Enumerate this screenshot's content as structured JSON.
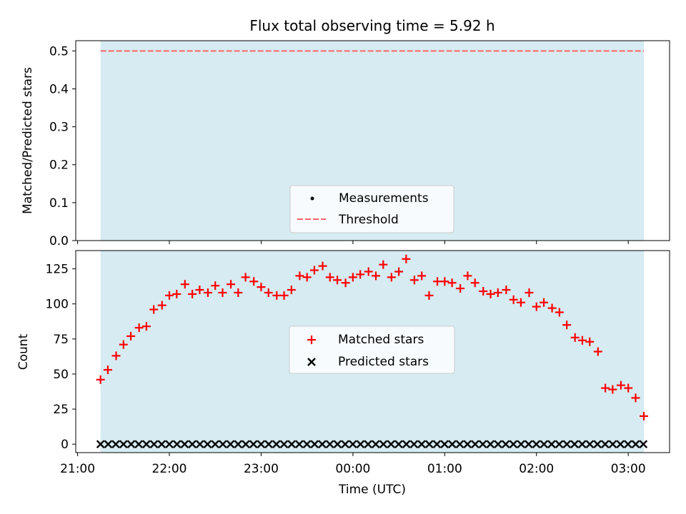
{
  "title": "Flux total observing time = 5.92 h",
  "xlabel": "Time (UTC)",
  "colors": {
    "band": "#add8e6",
    "threshold": "#ff6666",
    "matched": "#ff0000",
    "predicted": "#000000"
  },
  "chart_data": [
    {
      "type": "line",
      "panel": "top",
      "ylabel": "Matched/Predicted stars",
      "ylim": [
        0,
        0.5
      ],
      "yticks": [
        "0.0",
        "0.1",
        "0.2",
        "0.3",
        "0.4",
        "0.5"
      ],
      "threshold": 0.5,
      "legend": {
        "placement": "lower center",
        "entries": [
          "Measurements",
          "Threshold"
        ]
      },
      "series": [
        {
          "name": "Measurements",
          "x": [],
          "y": []
        },
        {
          "name": "Threshold",
          "y_const": 0.5
        }
      ]
    },
    {
      "type": "scatter",
      "panel": "bottom",
      "ylabel": "Count",
      "ylim": [
        -6,
        138
      ],
      "yticks": [
        "0",
        "25",
        "50",
        "75",
        "100",
        "125"
      ],
      "xticks": [
        "21:00",
        "22:00",
        "23:00",
        "00:00",
        "01:00",
        "02:00",
        "03:00"
      ],
      "xlim_hours": [
        20.98,
        27.45
      ],
      "observation_window_hours": [
        21.25,
        27.17
      ],
      "legend": {
        "placement": "center",
        "entries": [
          "Matched stars",
          "Predicted stars"
        ]
      },
      "series": [
        {
          "name": "Matched stars",
          "x": [
            21.25,
            21.33,
            21.42,
            21.5,
            21.58,
            21.67,
            21.75,
            21.83,
            21.92,
            22.0,
            22.08,
            22.17,
            22.25,
            22.33,
            22.42,
            22.5,
            22.58,
            22.67,
            22.75,
            22.83,
            22.92,
            23.0,
            23.08,
            23.17,
            23.25,
            23.33,
            23.42,
            23.5,
            23.58,
            23.67,
            23.75,
            23.83,
            23.92,
            24.0,
            24.08,
            24.17,
            24.25,
            24.33,
            24.42,
            24.5,
            24.58,
            24.67,
            24.75,
            24.83,
            24.92,
            25.0,
            25.08,
            25.17,
            25.25,
            25.33,
            25.42,
            25.5,
            25.58,
            25.67,
            25.75,
            25.83,
            25.92,
            26.0,
            26.08,
            26.17,
            26.25,
            26.33,
            26.42,
            26.5,
            26.58,
            26.67,
            26.75,
            26.83,
            26.92,
            27.0,
            27.08,
            27.17
          ],
          "y": [
            46,
            53,
            63,
            71,
            77,
            83,
            84,
            96,
            99,
            106,
            107,
            114,
            107,
            110,
            108,
            113,
            108,
            114,
            108,
            119,
            116,
            112,
            108,
            106,
            106,
            110,
            120,
            119,
            124,
            127,
            119,
            117,
            115,
            119,
            121,
            123,
            120,
            128,
            119,
            123,
            132,
            117,
            120,
            106,
            116,
            116,
            115,
            111,
            120,
            115,
            109,
            107,
            108,
            110,
            103,
            101,
            108,
            98,
            101,
            97,
            94,
            85,
            76,
            74,
            73,
            66,
            40,
            39,
            42,
            40,
            33,
            20
          ]
        },
        {
          "name": "Predicted stars",
          "x_start": 21.25,
          "x_step": 0.0833,
          "count": 72,
          "y": 0
        }
      ]
    }
  ]
}
